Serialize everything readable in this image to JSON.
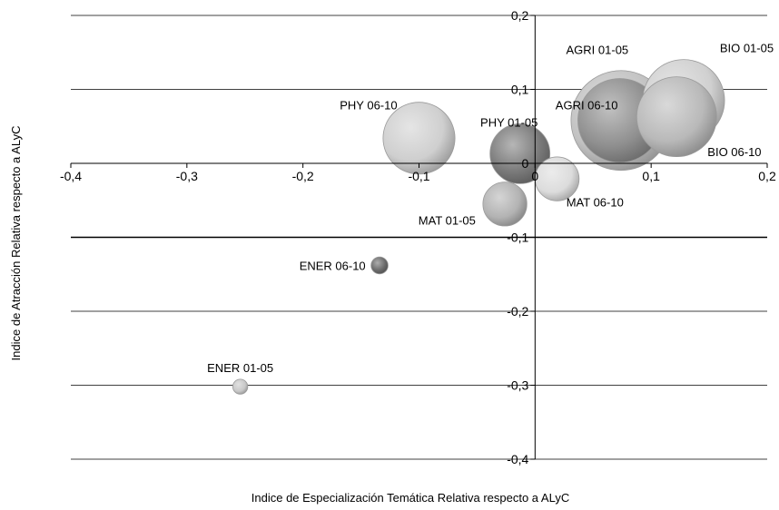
{
  "chart_data": {
    "type": "bubble",
    "xlabel": "Indice de Especialización Temática Relativa respecto a ALyC",
    "ylabel": "Indice de Atracción Relativa respecto a ALyC",
    "xlim": [
      -0.4,
      0.2
    ],
    "ylim": [
      -0.4,
      0.2
    ],
    "x_ticks": [
      {
        "value": -0.4,
        "label": "-0,4"
      },
      {
        "value": -0.3,
        "label": "-0,3"
      },
      {
        "value": -0.2,
        "label": "-0,2"
      },
      {
        "value": -0.1,
        "label": "-0,1"
      },
      {
        "value": 0.0,
        "label": "0"
      },
      {
        "value": 0.1,
        "label": "0,1"
      },
      {
        "value": 0.2,
        "label": "0,2"
      }
    ],
    "y_ticks": [
      {
        "value": 0.2,
        "label": "0,2"
      },
      {
        "value": 0.1,
        "label": "0,1"
      },
      {
        "value": 0.0,
        "label": "0"
      },
      {
        "value": -0.1,
        "label": "-0,1"
      },
      {
        "value": -0.2,
        "label": "-0,2"
      },
      {
        "value": -0.3,
        "label": "-0,3"
      },
      {
        "value": -0.4,
        "label": "-0,4"
      }
    ],
    "grid": "horizontal",
    "points": [
      {
        "label": "BIO 01-05",
        "x": 0.128,
        "y": 0.085,
        "size": 0.82,
        "color": "#d0d0d0",
        "label_pos": "top-right"
      },
      {
        "label": "BIO 06-10",
        "x": 0.122,
        "y": 0.063,
        "size": 0.8,
        "color": "#b9b9b9",
        "label_pos": "bottom-right"
      },
      {
        "label": "AGRI 01-05",
        "x": 0.074,
        "y": 0.058,
        "size": 1.0,
        "color": "#c2c2c2",
        "label_pos": "top-left"
      },
      {
        "label": "AGRI 06-10",
        "x": 0.073,
        "y": 0.058,
        "size": 0.84,
        "color": "#8f8f8f",
        "label_pos": "left"
      },
      {
        "label": "PHY 06-10",
        "x": -0.1,
        "y": 0.034,
        "size": 0.72,
        "color": "#cfcfcf",
        "label_pos": "top-left"
      },
      {
        "label": "PHY 01-05",
        "x": -0.013,
        "y": 0.013,
        "size": 0.6,
        "color": "#7a7a7a",
        "label_pos": "top"
      },
      {
        "label": "MAT 06-10",
        "x": 0.019,
        "y": -0.021,
        "size": 0.44,
        "color": "#dcdcdc",
        "label_pos": "bottom-right"
      },
      {
        "label": "MAT 01-05",
        "x": -0.026,
        "y": -0.055,
        "size": 0.44,
        "color": "#b3b3b3",
        "label_pos": "bottom-left"
      },
      {
        "label": "ENER 06-10",
        "x": -0.134,
        "y": -0.138,
        "size": 0.17,
        "color": "#6a6a6a",
        "label_pos": "left"
      },
      {
        "label": "ENER 01-05",
        "x": -0.254,
        "y": -0.302,
        "size": 0.15,
        "color": "#c8c8c8",
        "label_pos": "top"
      }
    ]
  }
}
